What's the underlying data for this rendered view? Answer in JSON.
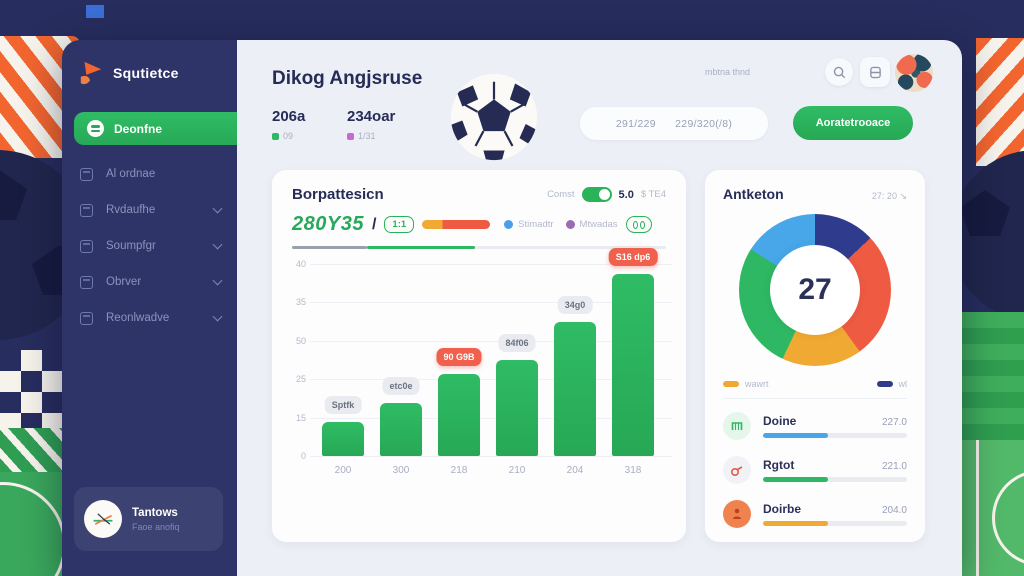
{
  "sidebar": {
    "logo": "Squtietce",
    "items": [
      {
        "label": "Deonfne",
        "active": true,
        "chevron": false
      },
      {
        "label": "Al ordnae",
        "active": false,
        "chevron": false
      },
      {
        "label": "Rvdaufhe",
        "active": false,
        "chevron": true
      },
      {
        "label": "Soumpfgr",
        "active": false,
        "chevron": true
      },
      {
        "label": "Obrver",
        "active": false,
        "chevron": true
      },
      {
        "label": "Reonlwadve",
        "active": false,
        "chevron": true
      }
    ],
    "footer_title": "Tantows",
    "footer_subtitle": "Faoe anofiq"
  },
  "topbar": {
    "note": "mbtna thnd",
    "date_range": "291/229      229/320(/8)",
    "action": "Aoratetrooace"
  },
  "header": {
    "title": "Dikog Angjsruse",
    "stat1": {
      "value": "206a",
      "sub": "09",
      "dot_color": "#2eb863"
    },
    "stat2": {
      "value": "234oar",
      "sub": "1/31",
      "dot_color": "#c36bd1"
    }
  },
  "main_chart": {
    "title": "Borpattesicn",
    "control_label": "Comst",
    "control_value": "5.0",
    "control_extra": "$ TE4",
    "big_value": "280Y35",
    "big_slash": "/",
    "ratio_badge": "1:1",
    "legend": [
      {
        "label": "Stimadtr",
        "color": "#4b9fe8"
      },
      {
        "label": "Mtwadas",
        "color": "#9b6bb3"
      }
    ],
    "progress_segments": [
      {
        "color": "#9aa0ac",
        "pct": 20
      },
      {
        "color": "#2eb863",
        "pct": 29
      }
    ],
    "chart_data": {
      "type": "bar",
      "categories": [
        "200",
        "300",
        "218",
        "210",
        "204",
        "318"
      ],
      "values": [
        7,
        11,
        17,
        20,
        28,
        38
      ],
      "bar_labels": [
        "Sptfk",
        "etc0e",
        "90 G9B",
        "84f06",
        "34g0",
        "S16 dp6"
      ],
      "bar_label_styles": [
        "gray",
        "gray",
        "red",
        "gray",
        "gray",
        "red"
      ],
      "y_ticks": [
        "40",
        "35",
        "50",
        "25",
        "15",
        "0"
      ],
      "ylim": [
        0,
        40
      ],
      "bar_color": "#2eb863",
      "grid": true,
      "title": "Borpattesicn",
      "xlabel": "",
      "ylabel": ""
    }
  },
  "side_chart": {
    "title": "Antketon",
    "range": "27: 20 ↘",
    "center_value": "27",
    "chart_data": {
      "type": "pie",
      "slices": [
        {
          "label": "navy",
          "value": 13,
          "color": "#2f3c8e"
        },
        {
          "label": "red",
          "value": 27,
          "color": "#ef5a43"
        },
        {
          "label": "yellow",
          "value": 17,
          "color": "#f0a932"
        },
        {
          "label": "green",
          "value": 27,
          "color": "#2eb863"
        },
        {
          "label": "blue",
          "value": 16,
          "color": "#48a7e8"
        }
      ],
      "center_label": "27"
    },
    "legend": [
      {
        "label": "wawrt",
        "color": "#f0a932"
      },
      {
        "label": "wl",
        "color": "#2f3c8e"
      }
    ],
    "rows": [
      {
        "icon": "goal",
        "icon_bg": "#e5f6ea",
        "label": "Doine",
        "value": "227.0",
        "bar_color": "#48a7e8",
        "pct": 45
      },
      {
        "icon": "whistle",
        "icon_bg": "#f1f2f6",
        "label": "Rgtot",
        "value": "221.0",
        "bar_color": "#2eb863",
        "pct": 45
      },
      {
        "icon": "player",
        "icon_bg": "#f0824f",
        "label": "Doirbe",
        "value": "204.0",
        "bar_color": "#f0a932",
        "pct": 45
      }
    ]
  }
}
